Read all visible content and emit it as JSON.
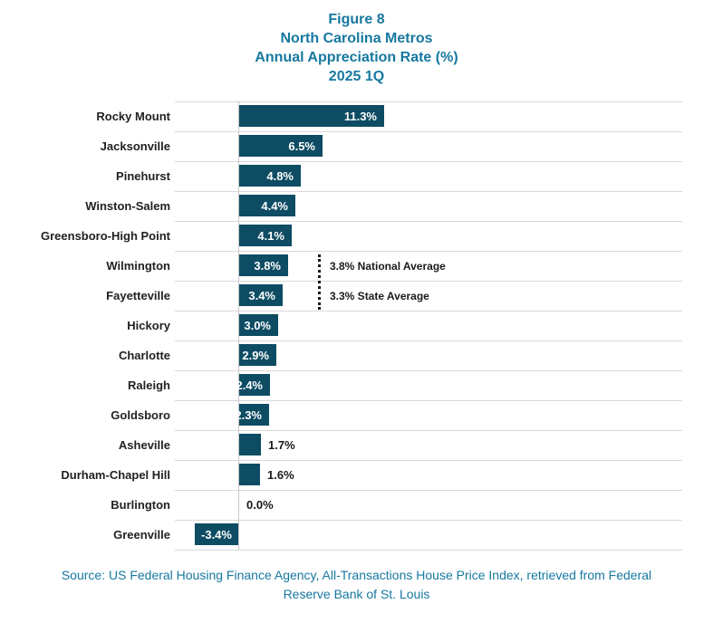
{
  "title": {
    "lines": [
      "Figure 8",
      "North Carolina Metros",
      "Annual Appreciation Rate (%)",
      "2025 1Q"
    ]
  },
  "chart_data": {
    "type": "bar",
    "orientation": "horizontal",
    "title": "Figure 8 / North Carolina Metros / Annual Appreciation Rate (%) / 2025 1Q",
    "categories": [
      "Rocky Mount",
      "Jacksonville",
      "Pinehurst",
      "Winston-Salem",
      "Greensboro-High Point",
      "Wilmington",
      "Fayetteville",
      "Hickory",
      "Charlotte",
      "Raleigh",
      "Goldsboro",
      "Asheville",
      "Durham-Chapel Hill",
      "Burlington",
      "Greenville"
    ],
    "values": [
      11.3,
      6.5,
      4.8,
      4.4,
      4.1,
      3.8,
      3.4,
      3.0,
      2.9,
      2.4,
      2.3,
      1.7,
      1.6,
      0.0,
      -3.4
    ],
    "value_labels": [
      "11.3%",
      "6.5%",
      "4.8%",
      "4.4%",
      "4.1%",
      "3.8%",
      "3.4%",
      "3.0%",
      "2.9%",
      "2.4%",
      "2.3%",
      "1.7%",
      "1.6%",
      "0.0%",
      "-3.4%"
    ],
    "label_placement": [
      "inside",
      "inside",
      "inside",
      "inside",
      "inside",
      "inside",
      "inside",
      "inside",
      "inside",
      "inside",
      "inside",
      "outside",
      "outside",
      "outside",
      "inside"
    ],
    "xlabel": "",
    "ylabel": "",
    "xlim": [
      -4.9,
      34.5
    ],
    "grid": "horizontal row separators, vertical zero axis",
    "legend": "none",
    "annotations": [
      {
        "text": "3.8% National Average",
        "row_index": 5
      },
      {
        "text": "3.3% State Average",
        "row_index": 6
      }
    ],
    "annotation_line": {
      "style": "dotted-vertical",
      "from_row": 5,
      "to_row": 6
    }
  },
  "source": {
    "lines": [
      "Source: US Federal Housing Finance Agency, All-Transactions House Price Index, retrieved from Federal",
      "Reserve Bank of St. Louis"
    ]
  },
  "colors": {
    "bar": "#0d4c63",
    "accent_text": "#1778a0",
    "grid": "#d9d9d9",
    "axis": "#c8c8c8",
    "label_text": "#212121",
    "value_inside": "#ffffff",
    "value_outside": "#1a1a1a"
  }
}
